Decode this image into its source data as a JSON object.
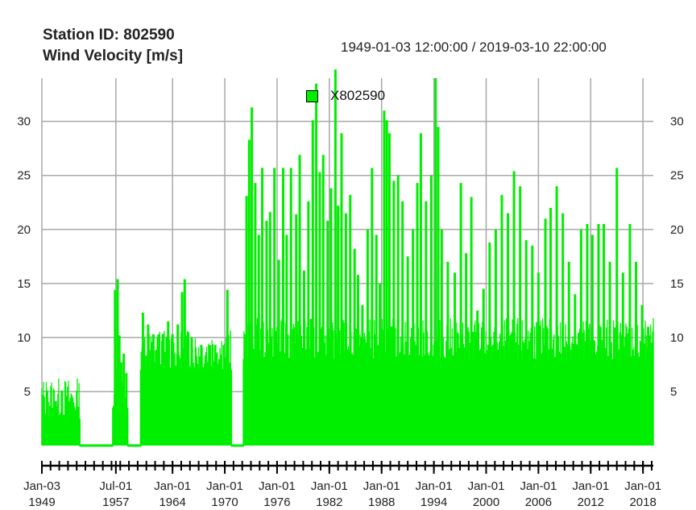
{
  "header": {
    "station_line": "Station ID: 802590",
    "variable_line": "Wind Velocity [m/s]",
    "period": "1949-01-03 12:00:00 / 2019-03-10 22:00:00"
  },
  "legend": {
    "label": "X802590",
    "color": "#00ee00"
  },
  "chart_data": {
    "type": "area",
    "title": "Station ID: 802590 / Wind Velocity [m/s]",
    "subtitle": "1949-01-03 12:00:00 / 2019-03-10 22:00:00",
    "ylabel": "Wind Velocity [m/s]",
    "xlim": [
      "1949-01-03",
      "2019-03-10"
    ],
    "ylim": [
      0,
      34
    ],
    "y_ticks": [
      5,
      10,
      15,
      20,
      25,
      30
    ],
    "x_ticks": [
      {
        "date": "1949-01-03",
        "line1": "Jan-03",
        "line2": "1949"
      },
      {
        "date": "1957-07-01",
        "line1": "Jul-01",
        "line2": "1957"
      },
      {
        "date": "1964-01-01",
        "line1": "Jan-01",
        "line2": "1964"
      },
      {
        "date": "1970-01-01",
        "line1": "Jan-01",
        "line2": "1970"
      },
      {
        "date": "1976-01-01",
        "line1": "Jan-01",
        "line2": "1976"
      },
      {
        "date": "1982-01-01",
        "line1": "Jan-01",
        "line2": "1982"
      },
      {
        "date": "1988-01-01",
        "line1": "Jan-01",
        "line2": "1988"
      },
      {
        "date": "1994-01-01",
        "line1": "Jan-01",
        "line2": "1994"
      },
      {
        "date": "2000-01-01",
        "line1": "Jan-01",
        "line2": "2000"
      },
      {
        "date": "2006-01-01",
        "line1": "Jan-01",
        "line2": "2006"
      },
      {
        "date": "2012-01-01",
        "line1": "Jan-01",
        "line2": "2012"
      },
      {
        "date": "2018-01-01",
        "line1": "Jan-01",
        "line2": "2018"
      }
    ],
    "grid": true,
    "legend_position": "top-center",
    "series": [
      {
        "name": "X802590",
        "color": "#00ee00",
        "segments": [
          {
            "start": 1949.0,
            "end": 1953.3,
            "base": 2.5,
            "peaks": [
              [
                1949.2,
                3.1
              ],
              [
                1949.6,
                5.1
              ],
              [
                1950.2,
                3.5
              ],
              [
                1950.6,
                4.1
              ],
              [
                1951.3,
                5.1
              ],
              [
                1951.9,
                4.6
              ],
              [
                1952.4,
                4.1
              ],
              [
                1952.9,
                3.3
              ],
              [
                1953.2,
                3.6
              ]
            ]
          },
          {
            "start": 1953.3,
            "end": 1957.2,
            "base": 0.0,
            "peaks": []
          },
          {
            "start": 1957.2,
            "end": 1958.8,
            "base": 3.5,
            "peaks": [
              [
                1957.4,
                14.4
              ],
              [
                1957.7,
                15.4
              ],
              [
                1957.9,
                10.2
              ],
              [
                1958.1,
                7.7
              ],
              [
                1958.4,
                8.5
              ],
              [
                1958.7,
                6.7
              ]
            ]
          },
          {
            "start": 1958.8,
            "end": 1960.4,
            "base": 0.0,
            "peaks": []
          },
          {
            "start": 1960.4,
            "end": 1970.7,
            "base": 7.0,
            "peaks": [
              [
                1960.6,
                12.3
              ],
              [
                1961.2,
                11.2
              ],
              [
                1961.8,
                10.3
              ],
              [
                1962.4,
                10.3
              ],
              [
                1962.9,
                10.3
              ],
              [
                1963.5,
                11.5
              ],
              [
                1964.0,
                10.3
              ],
              [
                1964.6,
                11.2
              ],
              [
                1965.1,
                14.2
              ],
              [
                1965.4,
                15.4
              ],
              [
                1965.8,
                10.5
              ],
              [
                1966.2,
                10.0
              ],
              [
                1966.7,
                8.3
              ],
              [
                1967.3,
                9.3
              ],
              [
                1967.8,
                8.0
              ],
              [
                1968.3,
                9.3
              ],
              [
                1968.9,
                9.3
              ],
              [
                1969.4,
                8.0
              ],
              [
                1969.9,
                9.3
              ],
              [
                1970.3,
                14.4
              ]
            ]
          },
          {
            "start": 1970.7,
            "end": 1972.2,
            "base": 0.0,
            "peaks": []
          },
          {
            "start": 1972.2,
            "end": 2019.2,
            "base": 8.0,
            "peaks": [
              [
                1972.5,
                23.1
              ],
              [
                1972.8,
                28.3
              ],
              [
                1973.1,
                31.3
              ],
              [
                1973.5,
                24.3
              ],
              [
                1973.9,
                19.5
              ],
              [
                1974.3,
                25.7
              ],
              [
                1974.8,
                20.8
              ],
              [
                1975.2,
                21.6
              ],
              [
                1975.7,
                25.7
              ],
              [
                1976.2,
                17.2
              ],
              [
                1976.7,
                25.7
              ],
              [
                1977.1,
                19.5
              ],
              [
                1977.6,
                25.7
              ],
              [
                1978.2,
                21.4
              ],
              [
                1978.6,
                26.9
              ],
              [
                1979.1,
                16.2
              ],
              [
                1979.6,
                22.6
              ],
              [
                1980.1,
                30.1
              ],
              [
                1980.5,
                33.5
              ],
              [
                1980.9,
                25.3
              ],
              [
                1981.3,
                26.9
              ],
              [
                1981.8,
                20.8
              ],
              [
                1982.2,
                23.8
              ],
              [
                1982.7,
                34.8
              ],
              [
                1983.0,
                22.2
              ],
              [
                1983.4,
                28.9
              ],
              [
                1983.9,
                21.5
              ],
              [
                1984.4,
                23.2
              ],
              [
                1984.9,
                18.2
              ],
              [
                1985.3,
                15.8
              ],
              [
                1985.8,
                13.0
              ],
              [
                1986.4,
                20.0
              ],
              [
                1986.9,
                25.7
              ],
              [
                1987.4,
                19.5
              ],
              [
                1987.8,
                15.0
              ],
              [
                1988.3,
                31.0
              ],
              [
                1988.6,
                30.1
              ],
              [
                1988.9,
                28.9
              ],
              [
                1989.4,
                24.5
              ],
              [
                1989.9,
                25.0
              ],
              [
                1990.4,
                22.6
              ],
              [
                1991.0,
                17.5
              ],
              [
                1991.6,
                20.0
              ],
              [
                1992.1,
                24.3
              ],
              [
                1992.5,
                28.9
              ],
              [
                1993.1,
                22.6
              ],
              [
                1993.7,
                25.0
              ],
              [
                1994.2,
                34.0
              ],
              [
                1994.5,
                29.5
              ],
              [
                1994.9,
                20.0
              ],
              [
                1995.6,
                17.0
              ],
              [
                1996.4,
                16.0
              ],
              [
                1997.1,
                24.3
              ],
              [
                1997.7,
                17.8
              ],
              [
                1998.3,
                23.0
              ],
              [
                1999.0,
                12.5
              ],
              [
                1999.7,
                14.5
              ],
              [
                2000.4,
                18.8
              ],
              [
                2001.1,
                20.0
              ],
              [
                2001.8,
                23.2
              ],
              [
                2002.5,
                21.5
              ],
              [
                2003.2,
                25.4
              ],
              [
                2003.9,
                24.0
              ],
              [
                2004.6,
                19.0
              ],
              [
                2005.3,
                18.5
              ],
              [
                2006.0,
                16.0
              ],
              [
                2006.8,
                21.0
              ],
              [
                2007.4,
                22.0
              ],
              [
                2008.1,
                24.0
              ],
              [
                2008.8,
                21.5
              ],
              [
                2009.5,
                17.0
              ],
              [
                2010.2,
                14.0
              ],
              [
                2010.9,
                20.0
              ],
              [
                2011.6,
                20.5
              ],
              [
                2012.2,
                19.5
              ],
              [
                2012.9,
                20.5
              ],
              [
                2013.5,
                20.5
              ],
              [
                2014.2,
                17.0
              ],
              [
                2015.0,
                25.7
              ],
              [
                2015.7,
                16.0
              ],
              [
                2016.5,
                20.5
              ],
              [
                2017.2,
                17.0
              ],
              [
                2017.9,
                13.0
              ],
              [
                2018.6,
                11.0
              ],
              [
                2019.1,
                9.0
              ]
            ]
          }
        ]
      }
    ]
  }
}
